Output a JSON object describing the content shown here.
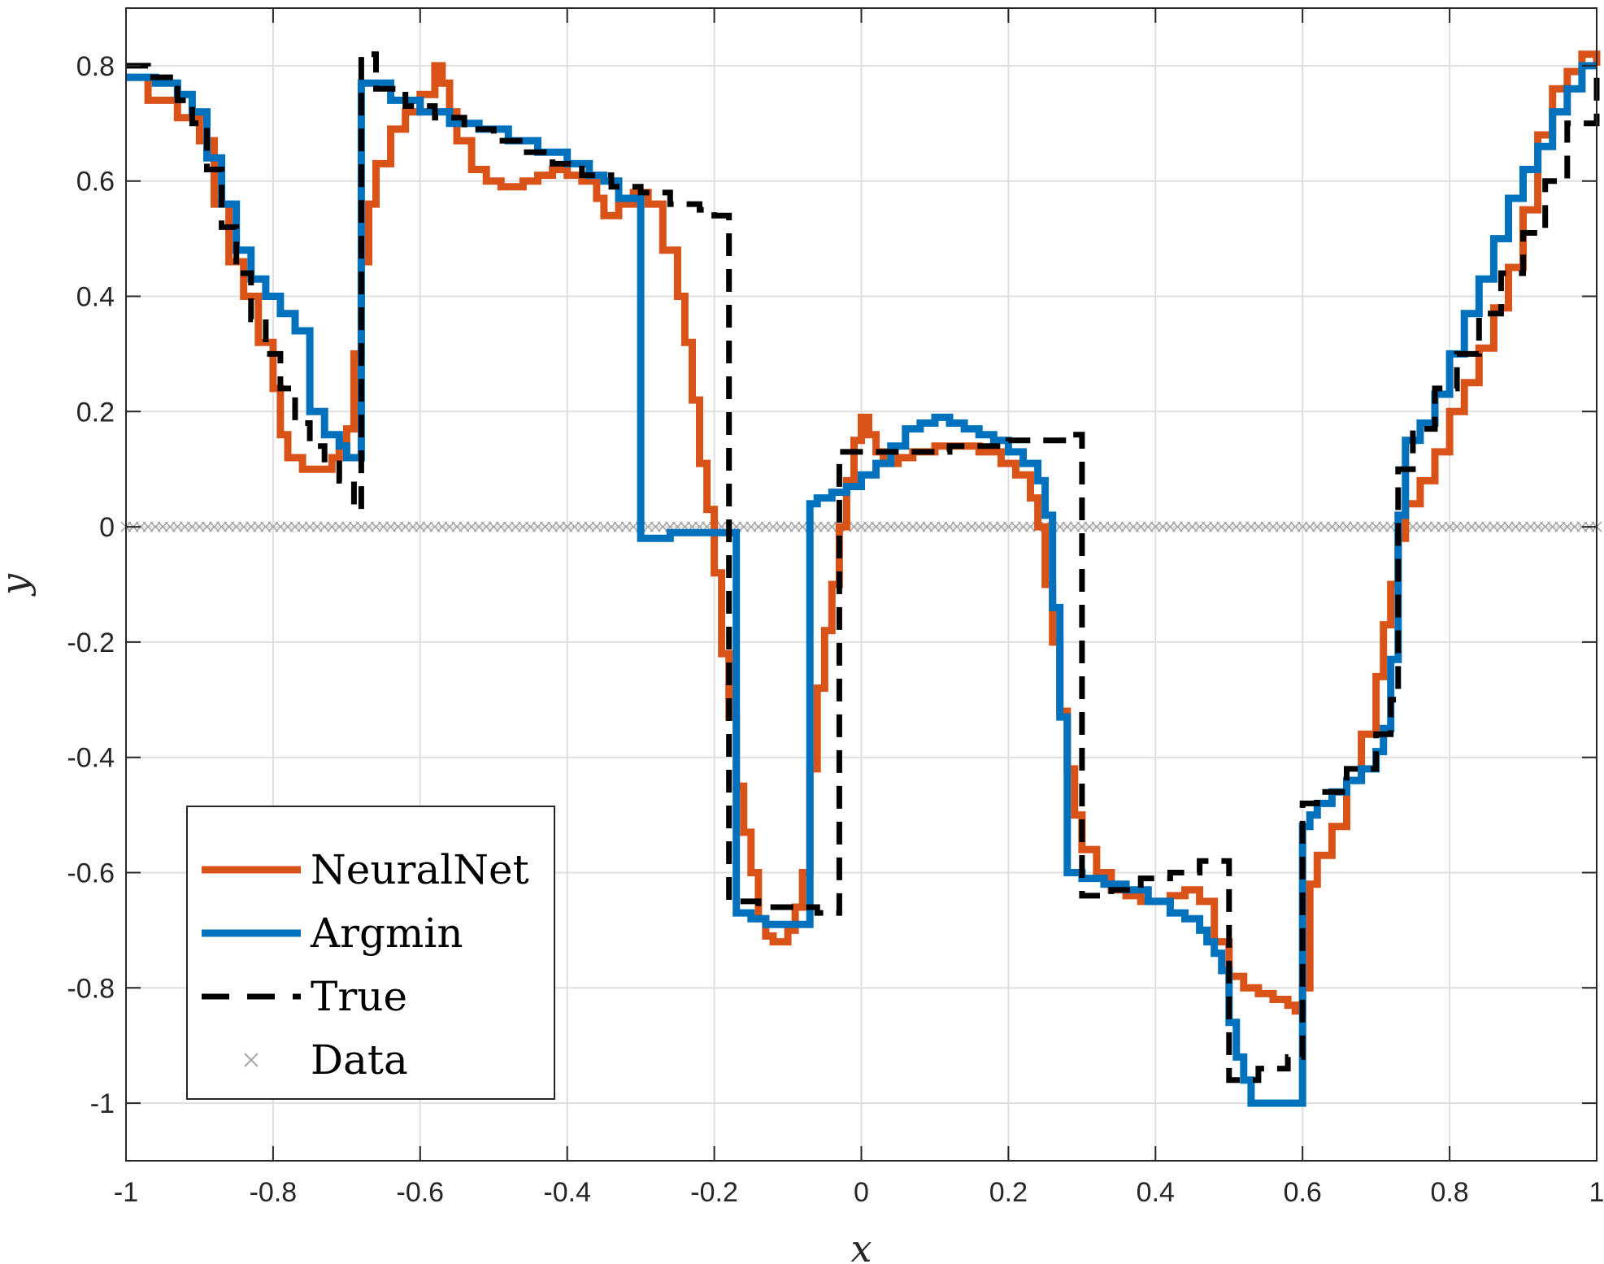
{
  "chart_data": {
    "type": "line",
    "title": "",
    "xlabel": "x",
    "ylabel": "y",
    "xlim": [
      -1,
      1
    ],
    "ylim": [
      -1.1,
      0.9
    ],
    "grid": true,
    "legend_position": "bottom-left",
    "x_ticks": [
      -1,
      -0.8,
      -0.6,
      -0.4,
      -0.2,
      0,
      0.2,
      0.4,
      0.6,
      0.8,
      1
    ],
    "x_tick_labels": [
      "-1",
      "-0.8",
      "-0.6",
      "-0.4",
      "-0.2",
      "0",
      "0.2",
      "0.4",
      "0.6",
      "0.8",
      "1"
    ],
    "y_ticks": [
      -1,
      -0.8,
      -0.6,
      -0.4,
      -0.2,
      0,
      0.2,
      0.4,
      0.6,
      0.8
    ],
    "y_tick_labels": [
      "-1",
      "-0.8",
      "-0.6",
      "-0.4",
      "-0.2",
      "0",
      "0.2",
      "0.4",
      "0.6",
      "0.8"
    ],
    "series": [
      {
        "name": "NeuralNet",
        "color": "#D95319",
        "style": "stairs",
        "x": [
          -1,
          -0.97,
          -0.93,
          -0.9,
          -0.88,
          -0.86,
          -0.84,
          -0.82,
          -0.8,
          -0.79,
          -0.78,
          -0.76,
          -0.74,
          -0.72,
          -0.71,
          -0.7,
          -0.69,
          -0.68,
          -0.67,
          -0.66,
          -0.64,
          -0.62,
          -0.6,
          -0.58,
          -0.57,
          -0.56,
          -0.55,
          -0.53,
          -0.51,
          -0.49,
          -0.46,
          -0.44,
          -0.42,
          -0.4,
          -0.38,
          -0.36,
          -0.35,
          -0.33,
          -0.31,
          -0.29,
          -0.27,
          -0.25,
          -0.24,
          -0.23,
          -0.22,
          -0.21,
          -0.2,
          -0.19,
          -0.18,
          -0.17,
          -0.16,
          -0.15,
          -0.14,
          -0.13,
          -0.12,
          -0.11,
          -0.1,
          -0.09,
          -0.08,
          -0.07,
          -0.06,
          -0.05,
          -0.04,
          -0.03,
          -0.02,
          -0.01,
          0,
          0.01,
          0.02,
          0.03,
          0.05,
          0.07,
          0.1,
          0.13,
          0.16,
          0.19,
          0.21,
          0.23,
          0.24,
          0.25,
          0.26,
          0.27,
          0.28,
          0.29,
          0.3,
          0.32,
          0.34,
          0.36,
          0.38,
          0.4,
          0.42,
          0.44,
          0.46,
          0.48,
          0.5,
          0.52,
          0.54,
          0.56,
          0.58,
          0.59,
          0.6,
          0.61,
          0.62,
          0.64,
          0.66,
          0.68,
          0.7,
          0.71,
          0.72,
          0.73,
          0.74,
          0.76,
          0.78,
          0.8,
          0.82,
          0.84,
          0.86,
          0.88,
          0.9,
          0.92,
          0.94,
          0.96,
          0.98,
          1
        ],
        "y": [
          0.78,
          0.74,
          0.71,
          0.67,
          0.56,
          0.46,
          0.4,
          0.32,
          0.24,
          0.16,
          0.12,
          0.1,
          0.1,
          0.12,
          0.15,
          0.17,
          0.3,
          0.46,
          0.56,
          0.63,
          0.69,
          0.72,
          0.75,
          0.8,
          0.77,
          0.72,
          0.67,
          0.62,
          0.6,
          0.59,
          0.6,
          0.61,
          0.62,
          0.61,
          0.6,
          0.57,
          0.54,
          0.56,
          0.58,
          0.56,
          0.48,
          0.4,
          0.32,
          0.22,
          0.11,
          0.03,
          -0.08,
          -0.22,
          -0.33,
          -0.45,
          -0.53,
          -0.6,
          -0.68,
          -0.71,
          -0.72,
          -0.72,
          -0.7,
          -0.66,
          -0.6,
          -0.42,
          -0.28,
          -0.18,
          -0.1,
          0,
          0.08,
          0.15,
          0.19,
          0.16,
          0.13,
          0.11,
          0.12,
          0.13,
          0.14,
          0.14,
          0.13,
          0.11,
          0.09,
          0.05,
          0,
          -0.1,
          -0.2,
          -0.32,
          -0.42,
          -0.5,
          -0.56,
          -0.6,
          -0.63,
          -0.64,
          -0.65,
          -0.65,
          -0.64,
          -0.63,
          -0.65,
          -0.72,
          -0.78,
          -0.8,
          -0.81,
          -0.82,
          -0.83,
          -0.84,
          -0.8,
          -0.62,
          -0.57,
          -0.52,
          -0.44,
          -0.36,
          -0.26,
          -0.17,
          -0.1,
          -0.02,
          0.04,
          0.08,
          0.13,
          0.2,
          0.25,
          0.31,
          0.38,
          0.45,
          0.55,
          0.68,
          0.76,
          0.79,
          0.82,
          0.8
        ]
      },
      {
        "name": "Argmin",
        "color": "#0072BD",
        "style": "stairs",
        "x": [
          -1,
          -0.96,
          -0.93,
          -0.91,
          -0.89,
          -0.87,
          -0.85,
          -0.83,
          -0.81,
          -0.79,
          -0.77,
          -0.75,
          -0.73,
          -0.71,
          -0.7,
          -0.68,
          -0.64,
          -0.6,
          -0.56,
          -0.52,
          -0.48,
          -0.44,
          -0.4,
          -0.37,
          -0.35,
          -0.33,
          -0.3,
          -0.26,
          -0.22,
          -0.2,
          -0.17,
          -0.15,
          -0.13,
          -0.11,
          -0.09,
          -0.07,
          -0.06,
          -0.04,
          -0.02,
          0,
          0.02,
          0.04,
          0.06,
          0.08,
          0.1,
          0.12,
          0.14,
          0.16,
          0.18,
          0.2,
          0.22,
          0.24,
          0.25,
          0.26,
          0.27,
          0.28,
          0.3,
          0.33,
          0.36,
          0.39,
          0.42,
          0.44,
          0.46,
          0.47,
          0.48,
          0.49,
          0.5,
          0.51,
          0.52,
          0.53,
          0.55,
          0.57,
          0.6,
          0.61,
          0.62,
          0.64,
          0.66,
          0.68,
          0.7,
          0.71,
          0.72,
          0.73,
          0.74,
          0.76,
          0.78,
          0.8,
          0.82,
          0.84,
          0.86,
          0.88,
          0.9,
          0.92,
          0.94,
          0.96,
          0.98
        ],
        "y": [
          0.78,
          0.77,
          0.75,
          0.72,
          0.64,
          0.56,
          0.48,
          0.43,
          0.4,
          0.37,
          0.34,
          0.2,
          0.16,
          0.14,
          0.12,
          0.77,
          0.74,
          0.72,
          0.7,
          0.69,
          0.67,
          0.65,
          0.63,
          0.61,
          0.6,
          0.57,
          -0.02,
          -0.01,
          -0.01,
          -0.01,
          -0.67,
          -0.68,
          -0.69,
          -0.69,
          -0.69,
          0.04,
          0.05,
          0.06,
          0.07,
          0.09,
          0.11,
          0.14,
          0.17,
          0.18,
          0.19,
          0.18,
          0.17,
          0.16,
          0.15,
          0.13,
          0.11,
          0.08,
          0.02,
          -0.14,
          -0.33,
          -0.6,
          -0.61,
          -0.62,
          -0.63,
          -0.65,
          -0.67,
          -0.68,
          -0.7,
          -0.72,
          -0.74,
          -0.77,
          -0.86,
          -0.92,
          -0.96,
          -1,
          -1,
          -1,
          -0.52,
          -0.5,
          -0.48,
          -0.46,
          -0.44,
          -0.42,
          -0.39,
          -0.35,
          -0.23,
          0.02,
          0.15,
          0.18,
          0.23,
          0.3,
          0.37,
          0.43,
          0.5,
          0.57,
          0.62,
          0.66,
          0.72,
          0.76,
          0.8
        ]
      },
      {
        "name": "True",
        "color": "#000000",
        "style": "dashed",
        "x": [
          -1,
          -0.97,
          -0.93,
          -0.91,
          -0.89,
          -0.87,
          -0.85,
          -0.83,
          -0.81,
          -0.79,
          -0.77,
          -0.75,
          -0.73,
          -0.71,
          -0.69,
          -0.68,
          -0.66,
          -0.62,
          -0.58,
          -0.54,
          -0.5,
          -0.46,
          -0.42,
          -0.38,
          -0.34,
          -0.3,
          -0.26,
          -0.22,
          -0.2,
          -0.18,
          -0.14,
          -0.1,
          -0.06,
          -0.03,
          0,
          0.04,
          0.08,
          0.12,
          0.16,
          0.2,
          0.24,
          0.28,
          0.3,
          0.34,
          0.38,
          0.42,
          0.46,
          0.5,
          0.54,
          0.58,
          0.6,
          0.62,
          0.66,
          0.7,
          0.72,
          0.73,
          0.75,
          0.78,
          0.81,
          0.84,
          0.87,
          0.9,
          0.93,
          0.96,
          1
        ],
        "y": [
          0.8,
          0.78,
          0.74,
          0.7,
          0.62,
          0.52,
          0.44,
          0.36,
          0.3,
          0.24,
          0.18,
          0.14,
          0.11,
          0.08,
          0.03,
          0.82,
          0.76,
          0.73,
          0.71,
          0.69,
          0.67,
          0.65,
          0.63,
          0.61,
          0.59,
          0.58,
          0.56,
          0.55,
          0.54,
          -0.65,
          -0.66,
          -0.66,
          -0.67,
          0.13,
          0.13,
          0.13,
          0.13,
          0.14,
          0.14,
          0.15,
          0.15,
          0.16,
          -0.64,
          -0.63,
          -0.61,
          -0.6,
          -0.58,
          -0.96,
          -0.94,
          -0.92,
          -0.48,
          -0.46,
          -0.42,
          -0.36,
          -0.3,
          0.1,
          0.17,
          0.24,
          0.3,
          0.37,
          0.44,
          0.51,
          0.6,
          0.7,
          0.8
        ]
      },
      {
        "name": "Data",
        "color": "#A6A6A6",
        "style": "markers-x",
        "x_range": [
          -1,
          1
        ],
        "x_step": 0.01,
        "y_value": 0
      }
    ]
  }
}
